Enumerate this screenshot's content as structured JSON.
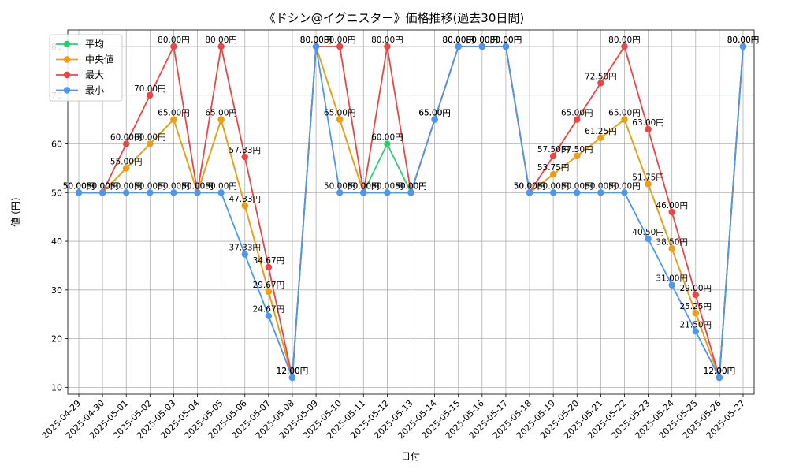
{
  "chart_data": {
    "type": "line",
    "title": "《ドシン@イグニスター》価格推移(過去30日間)",
    "xlabel": "日付",
    "ylabel": "値 (円)",
    "ylim": [
      8.6,
      83.4
    ],
    "yticks": [
      10,
      20,
      30,
      40,
      50,
      60,
      70,
      80
    ],
    "grid": true,
    "legend_position": "top-left",
    "categories": [
      "2025-04-29",
      "2025-04-30",
      "2025-05-01",
      "2025-05-02",
      "2025-05-03",
      "2025-05-04",
      "2025-05-05",
      "2025-05-06",
      "2025-05-07",
      "2025-05-08",
      "2025-05-09",
      "2025-05-10",
      "2025-05-11",
      "2025-05-12",
      "2025-05-13",
      "2025-05-14",
      "2025-05-15",
      "2025-05-16",
      "2025-05-17",
      "2025-05-18",
      "2025-05-19",
      "2025-05-20",
      "2025-05-21",
      "2025-05-22",
      "2025-05-23",
      "2025-05-24",
      "2025-05-25",
      "2025-05-26",
      "2025-05-27"
    ],
    "series": [
      {
        "name": "平均",
        "color": "#2ecc71",
        "values": [
          50,
          50,
          55,
          60,
          65,
          50,
          65,
          47.33,
          29.67,
          12,
          80,
          65,
          50,
          60,
          50,
          65,
          80,
          80,
          80,
          50,
          53.75,
          57.5,
          61.25,
          65,
          51.75,
          38.5,
          25.25,
          12,
          80
        ]
      },
      {
        "name": "中央値",
        "color": "#f39c12",
        "values": [
          50,
          50,
          55,
          60,
          65,
          50,
          65,
          47.33,
          29.67,
          12,
          80,
          65,
          50,
          50,
          50,
          65,
          80,
          80,
          80,
          50,
          53.75,
          57.5,
          61.25,
          65,
          51.75,
          38.5,
          25.25,
          12,
          80
        ]
      },
      {
        "name": "最大",
        "color": "#ef4444",
        "values": [
          50,
          50,
          60,
          70,
          80,
          50,
          80,
          57.33,
          34.67,
          12,
          80,
          80,
          50,
          80,
          50,
          65,
          80,
          80,
          80,
          50,
          57.5,
          65,
          72.5,
          80,
          63,
          46,
          29,
          12,
          80
        ]
      },
      {
        "name": "最小",
        "color": "#4a98f0",
        "values": [
          50,
          50,
          50,
          50,
          50,
          50,
          50,
          37.33,
          24.67,
          12,
          80,
          50,
          50,
          50,
          50,
          65,
          80,
          80,
          80,
          50,
          50,
          50,
          50,
          50,
          40.5,
          31,
          21.5,
          12,
          80
        ]
      }
    ],
    "data_labels": [
      {
        "text": "50.00円",
        "series": "最小",
        "i": 0
      },
      {
        "text": "50.00円",
        "series": "最小",
        "i": 1
      },
      {
        "text": "50.00円",
        "series": "最小",
        "i": 2
      },
      {
        "text": "50.00円",
        "series": "最小",
        "i": 3
      },
      {
        "text": "50.00円",
        "series": "最小",
        "i": 4
      },
      {
        "text": "50.00円",
        "series": "最小",
        "i": 5
      },
      {
        "text": "50.00円",
        "series": "最小",
        "i": 6
      },
      {
        "text": "37.33円",
        "series": "最小",
        "i": 7
      },
      {
        "text": "24.67円",
        "series": "最小",
        "i": 8
      },
      {
        "text": "12.00円",
        "series": "最小",
        "i": 9
      },
      {
        "text": "80.00円",
        "series": "最小",
        "i": 10
      },
      {
        "text": "50.00円",
        "series": "最小",
        "i": 11
      },
      {
        "text": "50.00円",
        "series": "最小",
        "i": 12
      },
      {
        "text": "50.00円",
        "series": "最小",
        "i": 13
      },
      {
        "text": "50.00円",
        "series": "最小",
        "i": 14
      },
      {
        "text": "65.00円",
        "series": "最小",
        "i": 15
      },
      {
        "text": "80.00円",
        "series": "最小",
        "i": 16
      },
      {
        "text": "80.00円",
        "series": "最小",
        "i": 17
      },
      {
        "text": "80.00円",
        "series": "最小",
        "i": 18
      },
      {
        "text": "50.00円",
        "series": "最小",
        "i": 19
      },
      {
        "text": "50.00円",
        "series": "最小",
        "i": 20
      },
      {
        "text": "50.00円",
        "series": "最小",
        "i": 21
      },
      {
        "text": "50.00円",
        "series": "最小",
        "i": 22
      },
      {
        "text": "50.00円",
        "series": "最小",
        "i": 23
      },
      {
        "text": "40.50円",
        "series": "最小",
        "i": 24
      },
      {
        "text": "31.00円",
        "series": "最小",
        "i": 25
      },
      {
        "text": "21.50円",
        "series": "最小",
        "i": 26
      },
      {
        "text": "12.00円",
        "series": "最小",
        "i": 27
      },
      {
        "text": "80.00円",
        "series": "最小",
        "i": 28
      },
      {
        "text": "60.00円",
        "series": "最大",
        "i": 2
      },
      {
        "text": "70.00円",
        "series": "最大",
        "i": 3
      },
      {
        "text": "80.00円",
        "series": "最大",
        "i": 4
      },
      {
        "text": "80.00円",
        "series": "最大",
        "i": 6
      },
      {
        "text": "57.33円",
        "series": "最大",
        "i": 7
      },
      {
        "text": "34.67円",
        "series": "最大",
        "i": 8
      },
      {
        "text": "80.00円",
        "series": "最大",
        "i": 11
      },
      {
        "text": "80.00円",
        "series": "最大",
        "i": 13
      },
      {
        "text": "57.50円",
        "series": "最大",
        "i": 20
      },
      {
        "text": "65.00円",
        "series": "最大",
        "i": 21
      },
      {
        "text": "72.50円",
        "series": "最大",
        "i": 22
      },
      {
        "text": "80.00円",
        "series": "最大",
        "i": 23
      },
      {
        "text": "63.00円",
        "series": "最大",
        "i": 24
      },
      {
        "text": "46.00円",
        "series": "最大",
        "i": 25
      },
      {
        "text": "29.00円",
        "series": "最大",
        "i": 26
      },
      {
        "text": "60.00円",
        "series": "平均",
        "i": 13
      },
      {
        "text": "50.00円",
        "series": "中央値",
        "i": 0
      },
      {
        "text": "50.00円",
        "series": "中央値",
        "i": 1
      },
      {
        "text": "55.00円",
        "series": "中央値",
        "i": 2
      },
      {
        "text": "60.00円",
        "series": "中央値",
        "i": 3
      },
      {
        "text": "65.00円",
        "series": "中央値",
        "i": 4
      },
      {
        "text": "50.00円",
        "series": "中央値",
        "i": 5
      },
      {
        "text": "65.00円",
        "series": "中央値",
        "i": 6
      },
      {
        "text": "47.33円",
        "series": "中央値",
        "i": 7
      },
      {
        "text": "29.67円",
        "series": "中央値",
        "i": 8
      },
      {
        "text": "12.00円",
        "series": "中央値",
        "i": 9
      },
      {
        "text": "80.00円",
        "series": "中央値",
        "i": 10
      },
      {
        "text": "65.00円",
        "series": "中央値",
        "i": 11
      },
      {
        "text": "50.00円",
        "series": "中央値",
        "i": 12
      },
      {
        "text": "50.00円",
        "series": "中央値",
        "i": 14
      },
      {
        "text": "65.00円",
        "series": "中央値",
        "i": 15
      },
      {
        "text": "80.00円",
        "series": "中央値",
        "i": 16
      },
      {
        "text": "80.00円",
        "series": "中央値",
        "i": 17
      },
      {
        "text": "80.00円",
        "series": "中央値",
        "i": 18
      },
      {
        "text": "50.00円",
        "series": "中央値",
        "i": 19
      },
      {
        "text": "53.75円",
        "series": "中央値",
        "i": 20
      },
      {
        "text": "57.50円",
        "series": "中央値",
        "i": 21
      },
      {
        "text": "61.25円",
        "series": "中央値",
        "i": 22
      },
      {
        "text": "65.00円",
        "series": "中央値",
        "i": 23
      },
      {
        "text": "51.75円",
        "series": "中央値",
        "i": 24
      },
      {
        "text": "38.50円",
        "series": "中央値",
        "i": 25
      },
      {
        "text": "25.25円",
        "series": "中央値",
        "i": 26
      },
      {
        "text": "12.00円",
        "series": "中央値",
        "i": 27
      },
      {
        "text": "80.00円",
        "series": "中央値",
        "i": 28
      }
    ]
  }
}
